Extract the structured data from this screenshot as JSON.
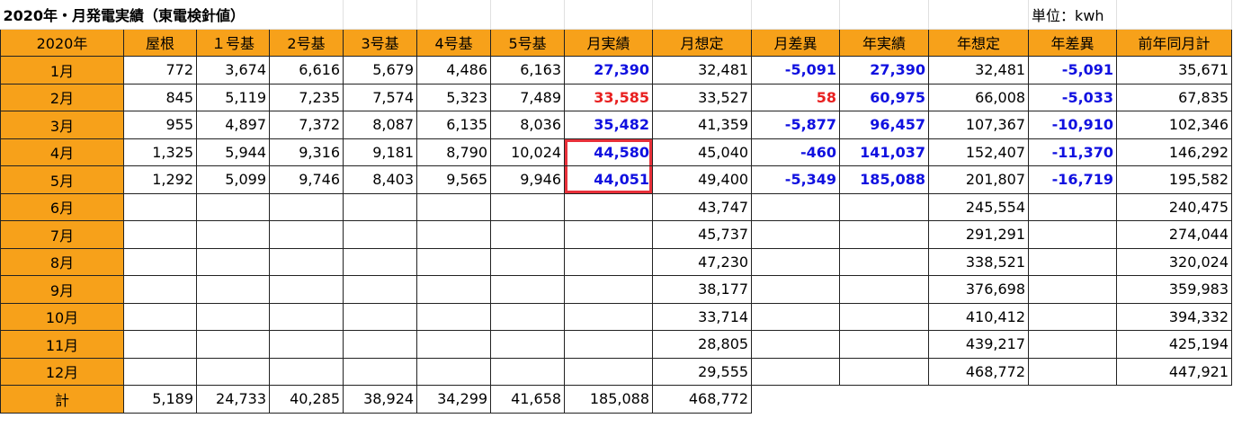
{
  "title": "2020年・月発電実績（東電検針値）",
  "unit_label": "単位：kwh",
  "headers": [
    "2020年",
    "屋根",
    "１号基",
    "2号基",
    "3号基",
    "4号基",
    "5号基",
    "月実績",
    "月想定",
    "月差異",
    "年実績",
    "年想定",
    "年差異",
    "前年同月計"
  ],
  "rows": [
    {
      "month": "1月",
      "cells": [
        "772",
        "3,674",
        "6,616",
        "5,679",
        "4,486",
        "6,163",
        "27,390",
        "32,481",
        "-5,091",
        "27,390",
        "32,481",
        "-5,091",
        "35,671"
      ]
    },
    {
      "month": "2月",
      "cells": [
        "845",
        "5,119",
        "7,235",
        "7,574",
        "5,323",
        "7,489",
        "33,585",
        "33,527",
        "58",
        "60,975",
        "66,008",
        "-5,033",
        "67,835"
      ]
    },
    {
      "month": "3月",
      "cells": [
        "955",
        "4,897",
        "7,372",
        "8,087",
        "6,135",
        "8,036",
        "35,482",
        "41,359",
        "-5,877",
        "96,457",
        "107,367",
        "-10,910",
        "102,346"
      ]
    },
    {
      "month": "4月",
      "cells": [
        "1,325",
        "5,944",
        "9,316",
        "9,181",
        "8,790",
        "10,024",
        "44,580",
        "45,040",
        "-460",
        "141,037",
        "152,407",
        "-11,370",
        "146,292"
      ]
    },
    {
      "month": "5月",
      "cells": [
        "1,292",
        "5,099",
        "9,746",
        "8,403",
        "9,565",
        "9,946",
        "44,051",
        "49,400",
        "-5,349",
        "185,088",
        "201,807",
        "-16,719",
        "195,582"
      ]
    },
    {
      "month": "6月",
      "cells": [
        "",
        "",
        "",
        "",
        "",
        "",
        "",
        "43,747",
        "",
        "",
        "245,554",
        "",
        "240,475"
      ]
    },
    {
      "month": "7月",
      "cells": [
        "",
        "",
        "",
        "",
        "",
        "",
        "",
        "45,737",
        "",
        "",
        "291,291",
        "",
        "274,044"
      ]
    },
    {
      "month": "8月",
      "cells": [
        "",
        "",
        "",
        "",
        "",
        "",
        "",
        "47,230",
        "",
        "",
        "338,521",
        "",
        "320,024"
      ]
    },
    {
      "month": "9月",
      "cells": [
        "",
        "",
        "",
        "",
        "",
        "",
        "",
        "38,177",
        "",
        "",
        "376,698",
        "",
        "359,983"
      ]
    },
    {
      "month": "10月",
      "cells": [
        "",
        "",
        "",
        "",
        "",
        "",
        "",
        "33,714",
        "",
        "",
        "410,412",
        "",
        "394,332"
      ]
    },
    {
      "month": "11月",
      "cells": [
        "",
        "",
        "",
        "",
        "",
        "",
        "",
        "28,805",
        "",
        "",
        "439,217",
        "",
        "425,194"
      ]
    },
    {
      "month": "12月",
      "cells": [
        "",
        "",
        "",
        "",
        "",
        "",
        "",
        "29,555",
        "",
        "",
        "468,772",
        "",
        "447,921"
      ]
    }
  ],
  "total": {
    "label": "計",
    "cells": [
      "5,189",
      "24,733",
      "40,285",
      "38,924",
      "34,299",
      "41,658",
      "185,088",
      "468,772"
    ]
  },
  "colors": {
    "header_bg": "#f7a11a",
    "highlight_blue": "#1010e0",
    "highlight_red": "#e82020",
    "selection_border": "#e8303a"
  }
}
